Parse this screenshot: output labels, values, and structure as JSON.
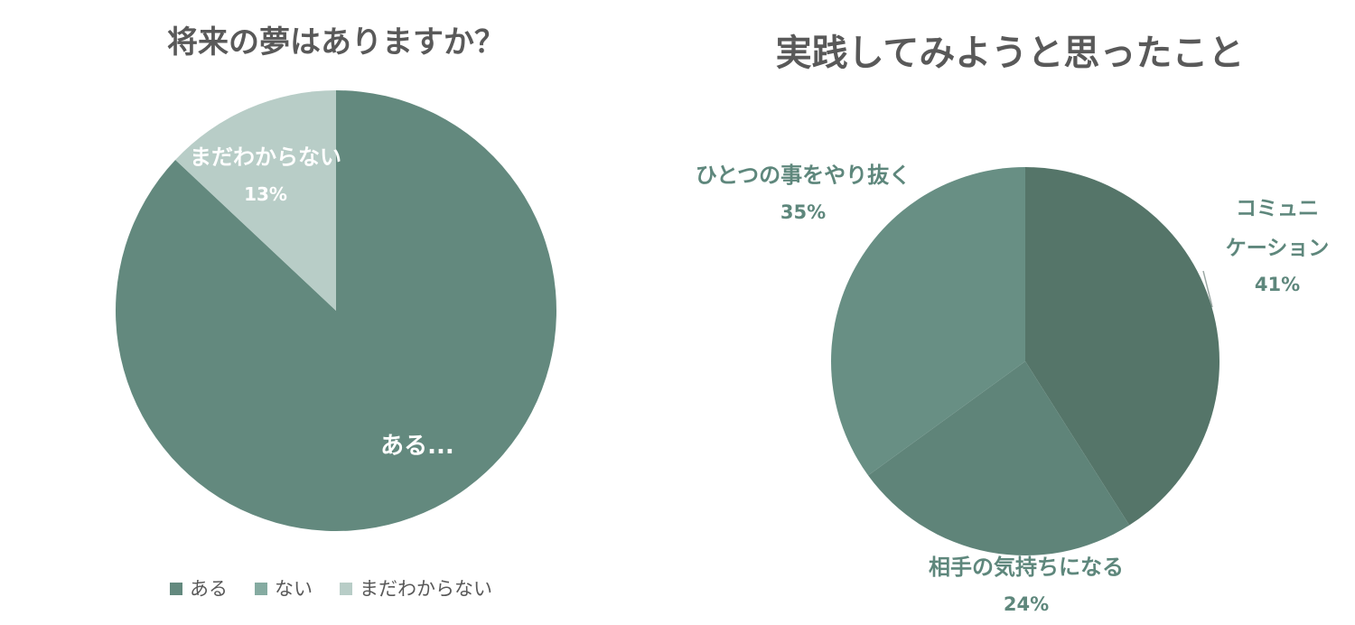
{
  "colors": {
    "title": "#595959",
    "legend_text": "#595959",
    "label_dark": "#5e877c",
    "label_light": "#ffffff"
  },
  "chart_data": [
    {
      "type": "pie",
      "title": "将来の夢はありますか？",
      "categories": [
        "ある",
        "ない",
        "まだわからない"
      ],
      "values": [
        87,
        0,
        13
      ],
      "display_labels": [
        "ある...",
        "",
        "まだわからない"
      ],
      "display_percents": [
        "",
        "",
        "13%"
      ],
      "colors": [
        "#63897e",
        "#85aba1",
        "#b8cdc7"
      ],
      "legend": {
        "position": "bottom",
        "items": [
          "ある",
          "ない",
          "まだわからない"
        ]
      }
    },
    {
      "type": "pie",
      "title": "実践してみようと思ったこと",
      "categories": [
        "コミュニケーション",
        "相手の気持ちになる",
        "ひとつの事をやり抜く"
      ],
      "values": [
        41,
        24,
        35
      ],
      "display_labels": [
        [
          "コミュニ",
          "ケーション"
        ],
        [
          "相手の気持ちになる"
        ],
        [
          "ひとつの事をやり抜く"
        ]
      ],
      "display_percents": [
        "41%",
        "24%",
        "35%"
      ],
      "colors": [
        "#557569",
        "#5f8479",
        "#688f84"
      ],
      "legend": {
        "position": "none",
        "items": []
      }
    }
  ]
}
